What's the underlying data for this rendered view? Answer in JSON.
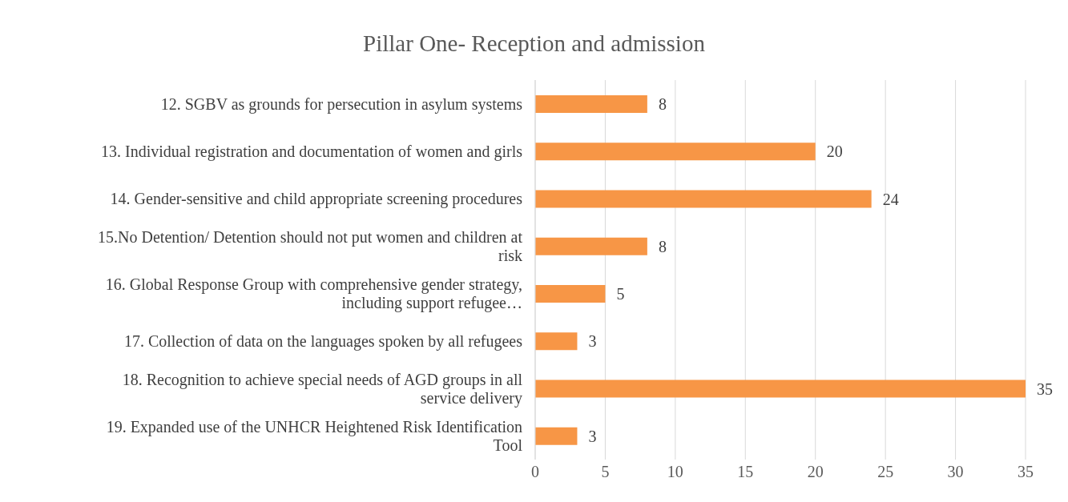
{
  "chart_data": {
    "type": "bar",
    "orientation": "horizontal",
    "title": "Pillar One- Reception and admission",
    "categories": [
      "12. SGBV as grounds for persecution in asylum systems",
      "13. Individual registration and documentation of women and girls",
      "14. Gender-sensitive and child appropriate screening procedures",
      "15.No Detention/ Detention should not put women and children at risk",
      "16. Global Response Group with comprehensive gender strategy, including support refugee…",
      "17. Collection of data on the languages spoken by all refugees",
      "18. Recognition to achieve special needs of AGD groups in all service delivery",
      "19. Expanded use of the UNHCR Heightened Risk Identification Tool"
    ],
    "values": [
      8,
      20,
      24,
      8,
      5,
      3,
      35,
      3
    ],
    "color": "#f79646",
    "xlim": [
      0,
      35
    ],
    "xticks": [
      0,
      5,
      10,
      15,
      20,
      25,
      30,
      35
    ],
    "grid": "x",
    "data_labels": true
  }
}
